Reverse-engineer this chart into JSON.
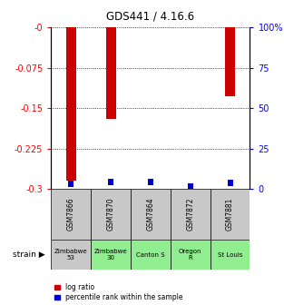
{
  "title": "GDS441 / 4.16.6",
  "samples": [
    "GSM7866",
    "GSM7870",
    "GSM7864",
    "GSM7872",
    "GSM7881"
  ],
  "strains": [
    "Zimbabwe\n53",
    "Zimbabwe\n30",
    "Canton S",
    "Oregon\nR",
    "St Louis"
  ],
  "strain_colors": [
    "#c8c8c8",
    "#90ee90",
    "#90ee90",
    "#90ee90",
    "#90ee90"
  ],
  "log_ratios": [
    -0.284,
    -0.17,
    0.0,
    0.0,
    -0.128
  ],
  "percentile_ranks": [
    3.5,
    4.5,
    4.5,
    1.5,
    4.0
  ],
  "ylim_left": [
    -0.3,
    0.0
  ],
  "ylim_right": [
    0,
    100
  ],
  "yticks_left": [
    0.0,
    -0.075,
    -0.15,
    -0.225,
    -0.3
  ],
  "yticks_right": [
    100,
    75,
    50,
    25,
    0
  ],
  "bar_color_red": "#cc0000",
  "bar_color_blue": "#0000cc",
  "legend_red_label": "log ratio",
  "legend_blue_label": "percentile rank within the sample",
  "strain_label": "strain",
  "bar_width": 0.25,
  "sample_box_color": "#c8c8c8"
}
